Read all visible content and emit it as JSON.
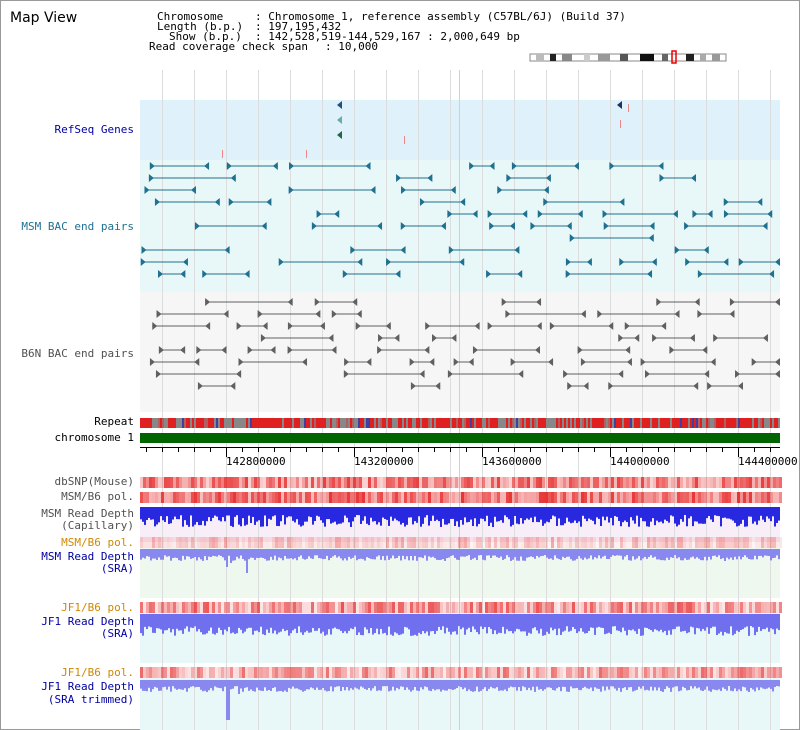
{
  "view_title": "Map View",
  "info": {
    "chromosome_label": "Chromosome",
    "chromosome_value": ": Chromosome 1, reference assembly (C57BL/6J) (Build 37)",
    "length_label": "Length (b.p.)",
    "length_value": ": 197,195,432",
    "show_label": "Show (b.p.)",
    "show_value": ": 142,528,519-144,529,167 : 2,000,649 bp",
    "coverage_label": "Read coverage check span",
    "coverage_value": ": 10,000"
  },
  "track_labels": {
    "refseq": "RefSeq Genes",
    "msm_bac": "MSM BAC end pairs",
    "b6n_bac": "B6N BAC end pairs",
    "repeat": "Repeat",
    "chromosome": "chromosome 1",
    "dbsnp": "dbSNP(Mouse)",
    "msm_b6_pol": "MSM/B6 pol.",
    "msm_depth_cap_1": "MSM Read Depth",
    "msm_depth_cap_2": "(Capillary)",
    "msm_b6_pol2": "MSM/B6 pol.",
    "msm_depth_sra_1": "MSM Read Depth",
    "msm_depth_sra_2": "(SRA)",
    "jf1_b6_pol": "JF1/B6 pol.",
    "jf1_depth_sra_1": "JF1 Read Depth",
    "jf1_depth_sra_2": "(SRA)",
    "jf1_b6_pol2": "JF1/B6 pol.",
    "jf1_depth_trim_1": "JF1 Read Depth",
    "jf1_depth_trim_2": "(SRA trimmed)"
  },
  "axis_ticks": [
    "142800000",
    "143200000",
    "143600000",
    "144000000",
    "144400000"
  ],
  "colors": {
    "label_blue": "#0000a0",
    "label_teal": "#207090",
    "label_gray": "#505050",
    "label_orange": "#d08800",
    "refseq_bg": "#dff1fa",
    "msm_bg": "#e8f8f8",
    "b6n_bg": "#f6f6f6",
    "chromosome_bar": "#006400",
    "depth_blue": "#3333ee",
    "depth_light": "#8888ee"
  }
}
